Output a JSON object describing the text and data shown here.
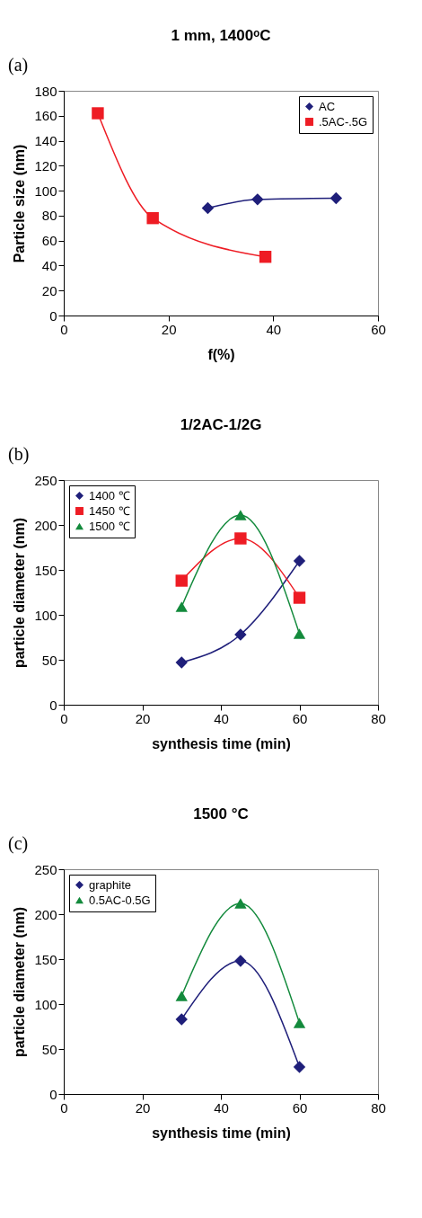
{
  "chart_data": [
    {
      "type": "line",
      "title": "1 mm, 1400ᵒC",
      "xlabel": "f(%)",
      "ylabel": "Particle size (nm)",
      "annotations": [
        "(a)"
      ],
      "series": [
        {
          "name": "AC",
          "color": "#1f1f7a",
          "marker": "diamond",
          "x": [
            27.5,
            37,
            52
          ],
          "values": [
            86,
            93,
            94
          ]
        },
        {
          "name": ".5AC-.5G",
          "color": "#ee1c24",
          "marker": "square",
          "x": [
            6.5,
            17,
            38.5
          ],
          "values": [
            162,
            78,
            47
          ]
        }
      ],
      "xlim": [
        0,
        60
      ],
      "xticks": [
        0,
        20,
        40,
        60
      ],
      "ylim": [
        0,
        180
      ],
      "yticks": [
        0,
        20,
        40,
        60,
        80,
        100,
        120,
        140,
        160,
        180
      ],
      "grid": false,
      "legend": "top right"
    },
    {
      "type": "line",
      "title": "1/2AC-1/2G",
      "xlabel": "synthesis time (min)",
      "ylabel": "particle diameter (nm)",
      "annotations": [
        "(b)"
      ],
      "series": [
        {
          "name": "1400 ℃",
          "color": "#1f1f7a",
          "marker": "diamond",
          "x": [
            30,
            45,
            60
          ],
          "values": [
            47,
            78,
            160
          ]
        },
        {
          "name": "1450 ℃",
          "color": "#ee1c24",
          "marker": "square",
          "x": [
            30,
            45,
            60
          ],
          "values": [
            138,
            185,
            119
          ]
        },
        {
          "name": "1500 ℃",
          "color": "#138a3c",
          "marker": "triangle",
          "x": [
            30,
            45,
            60
          ],
          "values": [
            109,
            211,
            79
          ]
        }
      ],
      "xlim": [
        0,
        80
      ],
      "xticks": [
        0,
        20,
        40,
        60,
        80
      ],
      "ylim": [
        0,
        250
      ],
      "yticks": [
        0,
        50,
        100,
        150,
        200,
        250
      ],
      "grid": false,
      "legend": "top left"
    },
    {
      "type": "line",
      "title": "1500 °C",
      "xlabel": "synthesis time (min)",
      "ylabel": "particle diameter (nm)",
      "annotations": [
        "(c)"
      ],
      "series": [
        {
          "name": "graphite",
          "color": "#1f1f7a",
          "marker": "diamond",
          "x": [
            30,
            45,
            60
          ],
          "values": [
            83,
            148,
            30
          ]
        },
        {
          "name": "0.5AC-0.5G",
          "color": "#138a3c",
          "marker": "triangle",
          "x": [
            30,
            45,
            60
          ],
          "values": [
            109,
            212,
            79
          ]
        }
      ],
      "xlim": [
        0,
        80
      ],
      "xticks": [
        0,
        20,
        40,
        60,
        80
      ],
      "ylim": [
        0,
        250
      ],
      "yticks": [
        0,
        50,
        100,
        150,
        200,
        250
      ],
      "grid": false,
      "legend": "top left"
    }
  ]
}
